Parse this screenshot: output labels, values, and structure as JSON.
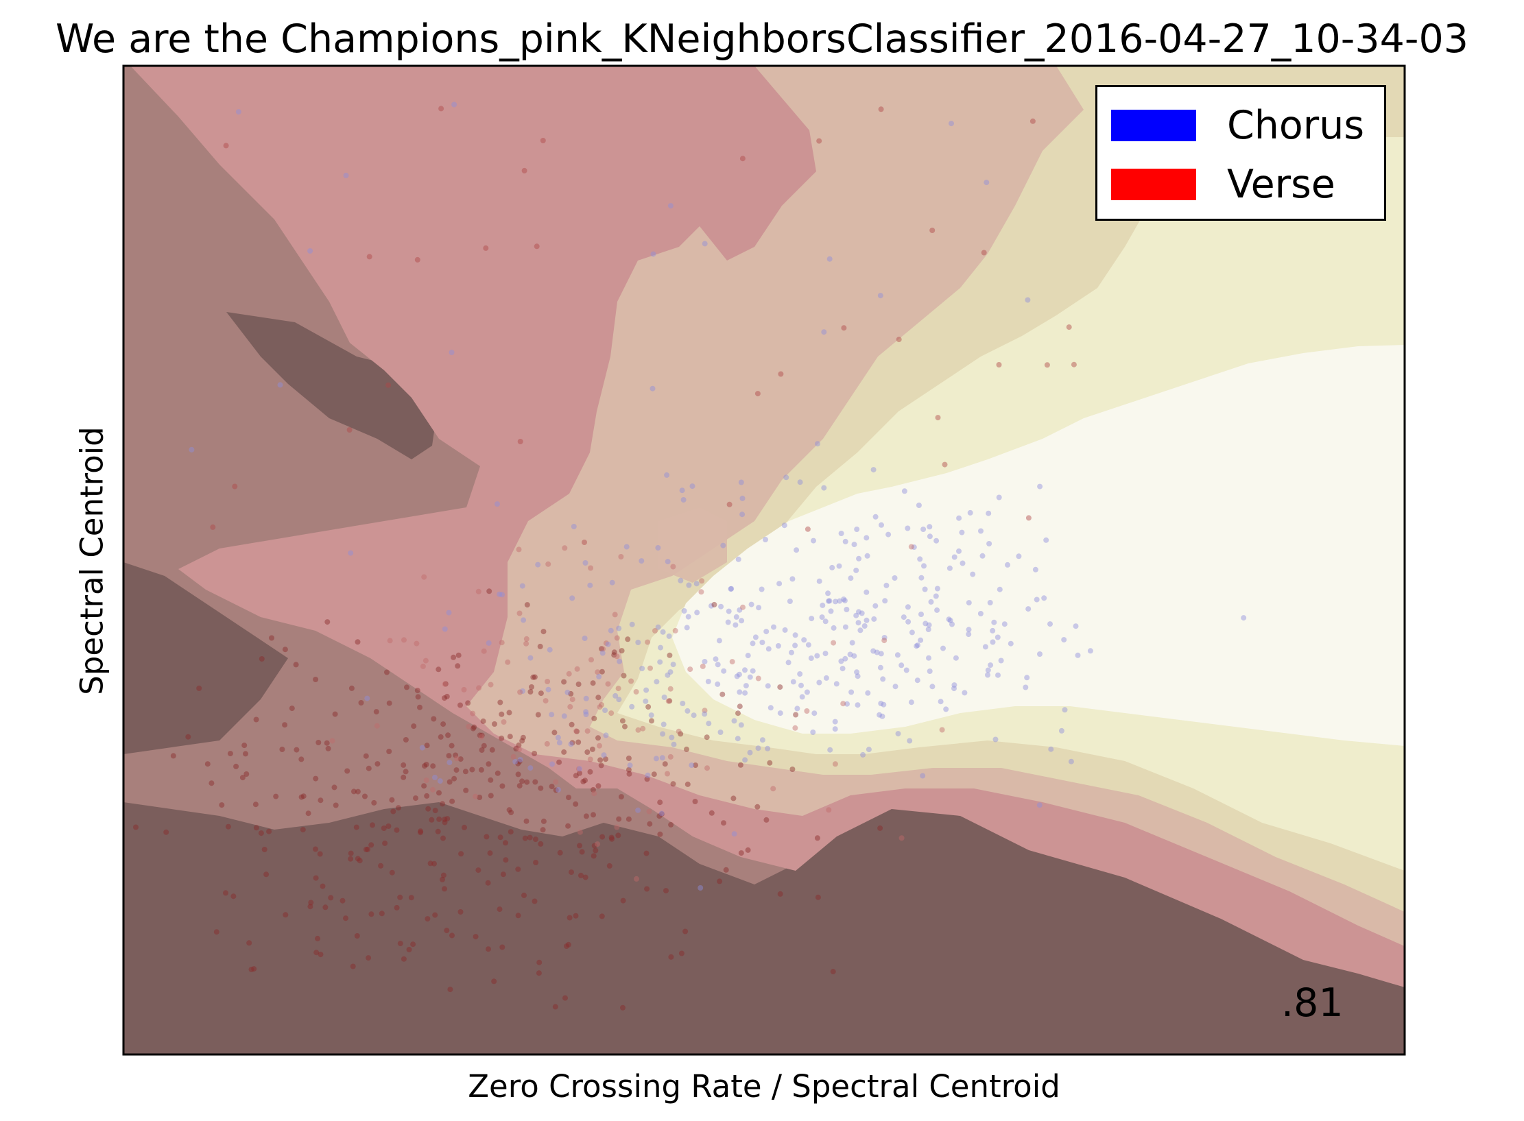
{
  "chart_data": {
    "type": "scatter",
    "title": "We are the Champions_pink_KNeighborsClassifier_2016-04-27_10-34-03",
    "xlabel": "Zero Crossing Rate / Spectral Centroid",
    "ylabel": "Spectral Centroid",
    "xticks": [],
    "yticks": [],
    "grid": false,
    "legend_position": "top-right",
    "series": [
      {
        "name": "Chorus",
        "color": "#0000ff"
      },
      {
        "name": "Verse",
        "color": "#ff0000"
      }
    ],
    "background": "decision-boundary contour from dark brown (Verse) to pale cream (Chorus)",
    "annotation": ".81"
  },
  "colors": {
    "level0": "#7b5e5c",
    "level1": "#a8807c",
    "level2": "#cc9494",
    "level3": "#d9b9a8",
    "level4": "#e3d9b5",
    "level5": "#efedcc",
    "level6": "#f9f8ee"
  }
}
